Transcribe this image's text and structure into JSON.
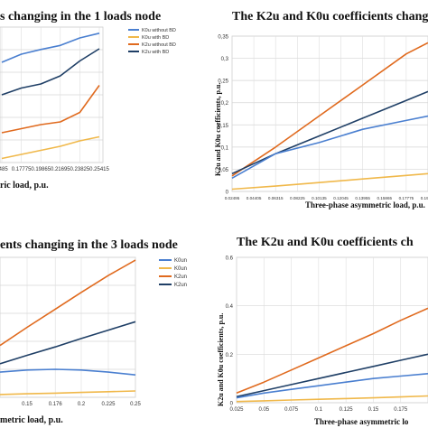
{
  "chart_data": [
    {
      "type": "line",
      "title": "s changing in the 1 loads node",
      "xlabel": "ric load, p.u.",
      "ylabel": "",
      "x_ticks": [
        "0485",
        "0.17775",
        "0.19865",
        "0.21695",
        "0.23825",
        "0.25415"
      ],
      "ylim": [
        0,
        1
      ],
      "grid": true,
      "legend": "top-right",
      "series": [
        {
          "name": "K0u without BD",
          "color": "#4a7fd0",
          "x": [
            0,
            1,
            2,
            3,
            4,
            5
          ],
          "y": [
            0.74,
            0.8,
            0.835,
            0.865,
            0.92,
            0.955
          ]
        },
        {
          "name": "K0u with BD",
          "color": "#f0b84a",
          "x": [
            0,
            1,
            2,
            3,
            4,
            5
          ],
          "y": [
            0.03,
            0.06,
            0.09,
            0.12,
            0.16,
            0.19
          ]
        },
        {
          "name": "K2u without BD",
          "color": "#e06a1e",
          "x": [
            0,
            1,
            2,
            3,
            4,
            5
          ],
          "y": [
            0.22,
            0.25,
            0.28,
            0.3,
            0.37,
            0.57
          ]
        },
        {
          "name": "K2u with BD",
          "color": "#1f3f66",
          "x": [
            0,
            1,
            2,
            3,
            4,
            5
          ],
          "y": [
            0.5,
            0.55,
            0.58,
            0.64,
            0.75,
            0.84
          ]
        }
      ]
    },
    {
      "type": "line",
      "title": "The K2u and K0u coefficients chang",
      "xlabel": "Three-phase asymmetric load, p.u.",
      "ylabel": "K2u and K0u coefficients, p.u.",
      "y_ticks": [
        "0",
        "0,05",
        "0,1",
        "0,15",
        "0,2",
        "0,25",
        "0,3",
        "0,35"
      ],
      "x_ticks": [
        "0.02495",
        "0.04405",
        "0.06315",
        "0.08225",
        "0.10135",
        "0.12045",
        "0.13955",
        "0.15865",
        "0.17775",
        "0.19685"
      ],
      "ylim": [
        0,
        0.35
      ],
      "grid": true,
      "legend": "top-right",
      "series": [
        {
          "name": "",
          "color": "#e06a1e",
          "x": [
            0.02495,
            0.06315,
            0.10135,
            0.13955,
            0.17775,
            0.19685
          ],
          "y": [
            0.035,
            0.1,
            0.17,
            0.24,
            0.31,
            0.335
          ]
        },
        {
          "name": "",
          "color": "#1f3f66",
          "x": [
            0.02495,
            0.06315,
            0.10135,
            0.13955,
            0.17775,
            0.19685
          ],
          "y": [
            0.04,
            0.085,
            0.125,
            0.165,
            0.205,
            0.225
          ]
        },
        {
          "name": "",
          "color": "#4a7fd0",
          "x": [
            0.02495,
            0.06315,
            0.10135,
            0.13955,
            0.17775,
            0.19685
          ],
          "y": [
            0.03,
            0.085,
            0.11,
            0.14,
            0.16,
            0.17
          ]
        },
        {
          "name": "",
          "color": "#f0b84a",
          "x": [
            0.02495,
            0.06315,
            0.10135,
            0.13955,
            0.17775,
            0.19685
          ],
          "y": [
            0.005,
            0.012,
            0.02,
            0.028,
            0.036,
            0.04
          ]
        }
      ]
    },
    {
      "type": "line",
      "title": "ents changing in the 3 loads node",
      "xlabel": "metric load, p.u.",
      "ylabel": "",
      "x_ticks": [
        "0.15",
        "0.176",
        "0.2",
        "0.225",
        "0.25"
      ],
      "ylim": [
        0,
        1
      ],
      "grid": true,
      "legend": "top-right",
      "legend_labels": [
        "K0un",
        "K0un",
        "K2un",
        "K2un"
      ],
      "series": [
        {
          "name": "",
          "color": "#e06a1e",
          "x": [
            0.125,
            0.15,
            0.176,
            0.2,
            0.225,
            0.25
          ],
          "y": [
            0.37,
            0.5,
            0.63,
            0.75,
            0.87,
            0.98
          ]
        },
        {
          "name": "",
          "color": "#1f3f66",
          "x": [
            0.125,
            0.15,
            0.176,
            0.2,
            0.225,
            0.25
          ],
          "y": [
            0.24,
            0.3,
            0.36,
            0.42,
            0.48,
            0.54
          ]
        },
        {
          "name": "",
          "color": "#4a7fd0",
          "x": [
            0.125,
            0.15,
            0.176,
            0.2,
            0.225,
            0.25
          ],
          "y": [
            0.18,
            0.195,
            0.2,
            0.195,
            0.18,
            0.16
          ]
        },
        {
          "name": "",
          "color": "#f0b84a",
          "x": [
            0.125,
            0.15,
            0.176,
            0.2,
            0.225,
            0.25
          ],
          "y": [
            0.02,
            0.025,
            0.03,
            0.035,
            0.04,
            0.045
          ]
        }
      ]
    },
    {
      "type": "line",
      "title": "The K2u and K0u coefficients ch",
      "xlabel": "Three-phase asymmetric lo",
      "ylabel": "K2u and K0u coefficients, p.u.",
      "y_ticks": [
        "0",
        "0.2",
        "0.4",
        "0.6"
      ],
      "x_ticks": [
        "0.025",
        "0.05",
        "0.075",
        "0.1",
        "0.125",
        "0.15",
        "0.175"
      ],
      "ylim": [
        0,
        0.6
      ],
      "grid": true,
      "series": [
        {
          "name": "",
          "color": "#e06a1e",
          "x": [
            0.025,
            0.05,
            0.075,
            0.1,
            0.125,
            0.15,
            0.175,
            0.2
          ],
          "y": [
            0.04,
            0.085,
            0.135,
            0.185,
            0.235,
            0.285,
            0.34,
            0.39
          ]
        },
        {
          "name": "",
          "color": "#1f3f66",
          "x": [
            0.025,
            0.05,
            0.075,
            0.1,
            0.125,
            0.15,
            0.175,
            0.2
          ],
          "y": [
            0.025,
            0.05,
            0.075,
            0.1,
            0.125,
            0.15,
            0.175,
            0.2
          ]
        },
        {
          "name": "",
          "color": "#4a7fd0",
          "x": [
            0.025,
            0.05,
            0.075,
            0.1,
            0.125,
            0.15,
            0.175,
            0.2
          ],
          "y": [
            0.02,
            0.04,
            0.055,
            0.07,
            0.085,
            0.1,
            0.11,
            0.12
          ]
        },
        {
          "name": "",
          "color": "#f0b84a",
          "x": [
            0.025,
            0.05,
            0.075,
            0.1,
            0.125,
            0.15,
            0.175,
            0.2
          ],
          "y": [
            0.005,
            0.008,
            0.011,
            0.014,
            0.017,
            0.02,
            0.024,
            0.028
          ]
        }
      ]
    }
  ]
}
